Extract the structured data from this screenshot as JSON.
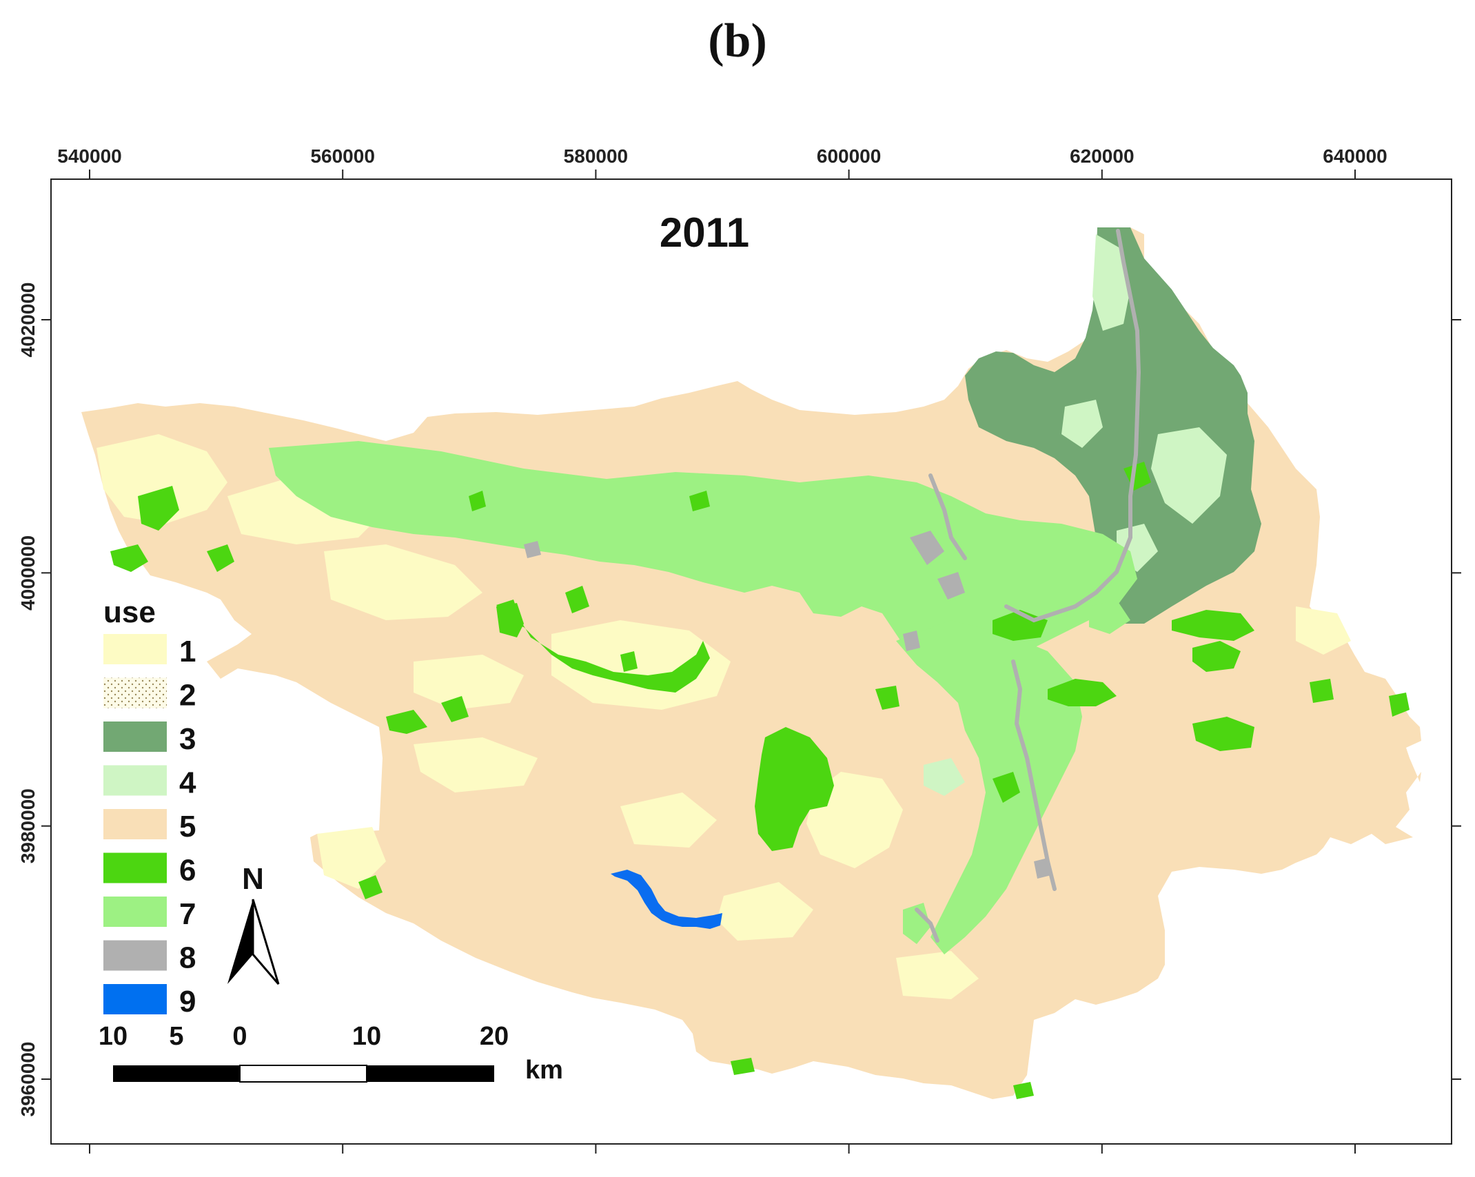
{
  "panel_label": "(b)",
  "map_title": "2011",
  "x_ticks": [
    {
      "label": "540000",
      "value": 540000
    },
    {
      "label": "560000",
      "value": 560000
    },
    {
      "label": "580000",
      "value": 580000
    },
    {
      "label": "600000",
      "value": 600000
    },
    {
      "label": "620000",
      "value": 620000
    },
    {
      "label": "640000",
      "value": 640000
    }
  ],
  "y_ticks": [
    {
      "label": "4020000",
      "value": 4020000
    },
    {
      "label": "4000000",
      "value": 4000000
    },
    {
      "label": "3980000",
      "value": 3980000
    },
    {
      "label": "3960000",
      "value": 3960000
    }
  ],
  "legend": {
    "title": "use",
    "items": [
      {
        "label": "1",
        "color": "#fdfbc4",
        "pattern": "none"
      },
      {
        "label": "2",
        "color": "#fdfbe8",
        "pattern": "stipple"
      },
      {
        "label": "3",
        "color": "#72a873",
        "pattern": "none"
      },
      {
        "label": "4",
        "color": "#cff5c4",
        "pattern": "none"
      },
      {
        "label": "5",
        "color": "#f9dfb7",
        "pattern": "none"
      },
      {
        "label": "6",
        "color": "#4cd611",
        "pattern": "none"
      },
      {
        "label": "7",
        "color": "#9df183",
        "pattern": "none"
      },
      {
        "label": "8",
        "color": "#b0b0b0",
        "pattern": "none"
      },
      {
        "label": "9",
        "color": "#0070f0",
        "pattern": "none"
      }
    ]
  },
  "north_arrow": {
    "label": "N"
  },
  "scale_bar": {
    "ticks": [
      "10",
      "5",
      "0",
      "10",
      "20"
    ],
    "unit": "km"
  }
}
